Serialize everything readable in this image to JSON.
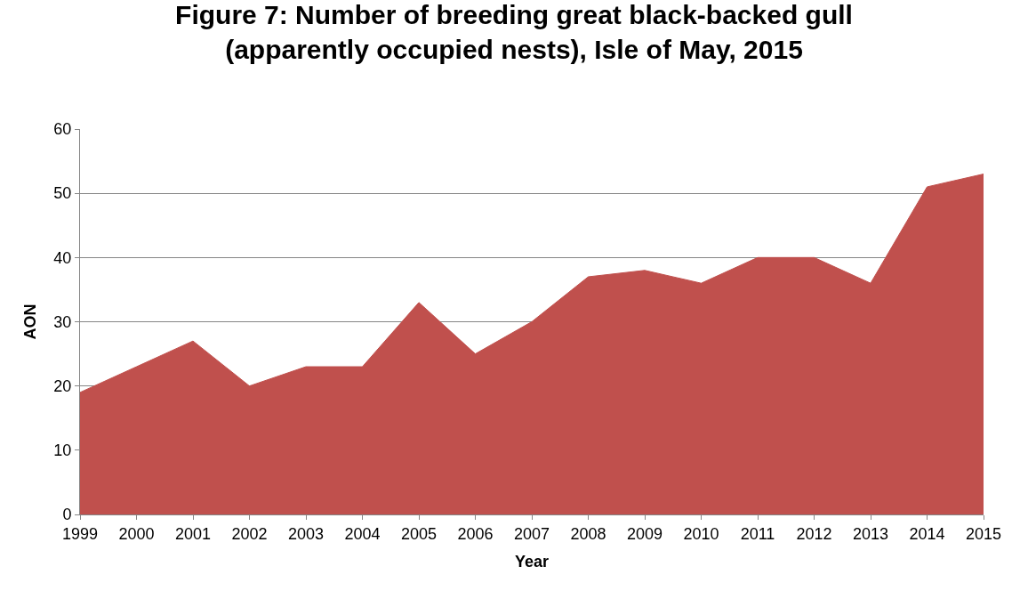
{
  "chart_data": {
    "type": "area",
    "title": "Figure 7: Number of breeding great black-backed gull\n(apparently occupied nests), Isle of May, 2015",
    "xlabel": "Year",
    "ylabel": "AON",
    "categories": [
      "1999",
      "2000",
      "2001",
      "2002",
      "2003",
      "2004",
      "2005",
      "2006",
      "2007",
      "2008",
      "2009",
      "2010",
      "2011",
      "2012",
      "2013",
      "2014",
      "2015"
    ],
    "values": [
      19,
      23,
      27,
      20,
      23,
      23,
      33,
      25,
      30,
      37,
      38,
      36,
      40,
      40,
      36,
      51,
      53
    ],
    "color": "#c0504d",
    "ylim": [
      0,
      60
    ],
    "yticks": [
      0,
      10,
      20,
      30,
      40,
      50,
      60
    ],
    "grid": "y"
  }
}
